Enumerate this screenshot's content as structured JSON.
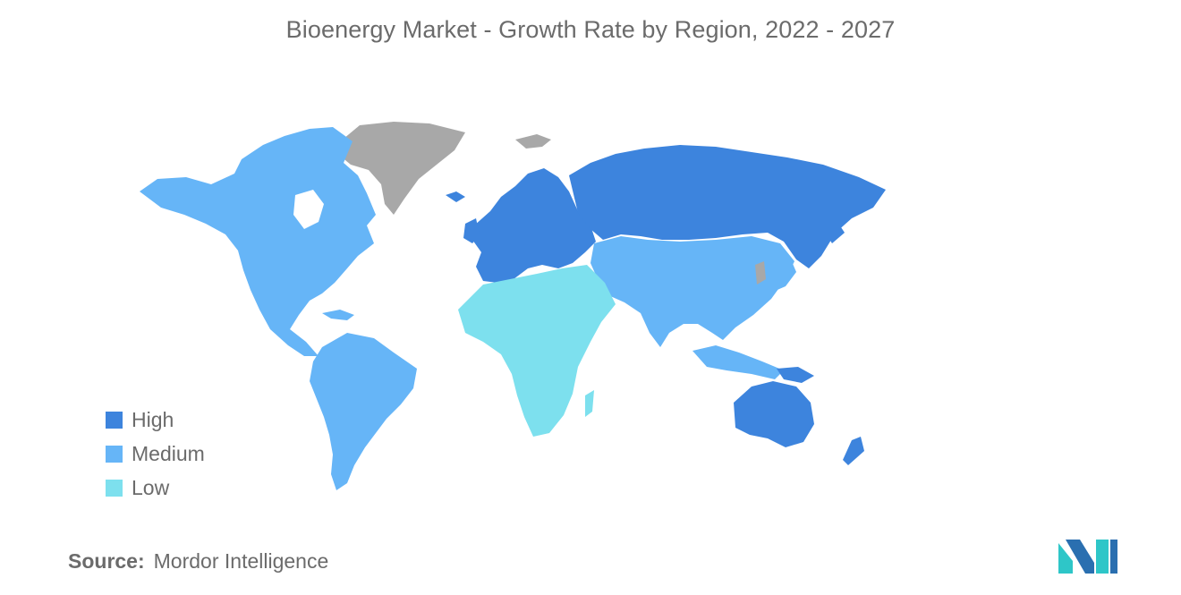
{
  "title": "Bioenergy Market - Growth Rate by Region, 2022 - 2027",
  "legend": [
    {
      "label": "High",
      "color": "#3d84dd"
    },
    {
      "label": "Medium",
      "color": "#66b5f7"
    },
    {
      "label": "Low",
      "color": "#7de0ee"
    }
  ],
  "no_data_color": "#a8a8a8",
  "regions": [
    {
      "name": "North America",
      "level": "Medium"
    },
    {
      "name": "South America",
      "level": "Medium"
    },
    {
      "name": "Europe",
      "level": "High"
    },
    {
      "name": "Russia",
      "level": "High"
    },
    {
      "name": "Asia-Pacific",
      "level": "Medium"
    },
    {
      "name": "Australia and New Zealand",
      "level": "High"
    },
    {
      "name": "Middle East and Africa",
      "level": "Low"
    }
  ],
  "source": {
    "label": "Source:",
    "value": "Mordor Intelligence"
  },
  "logo_icon": "mordor-intelligence-logo"
}
